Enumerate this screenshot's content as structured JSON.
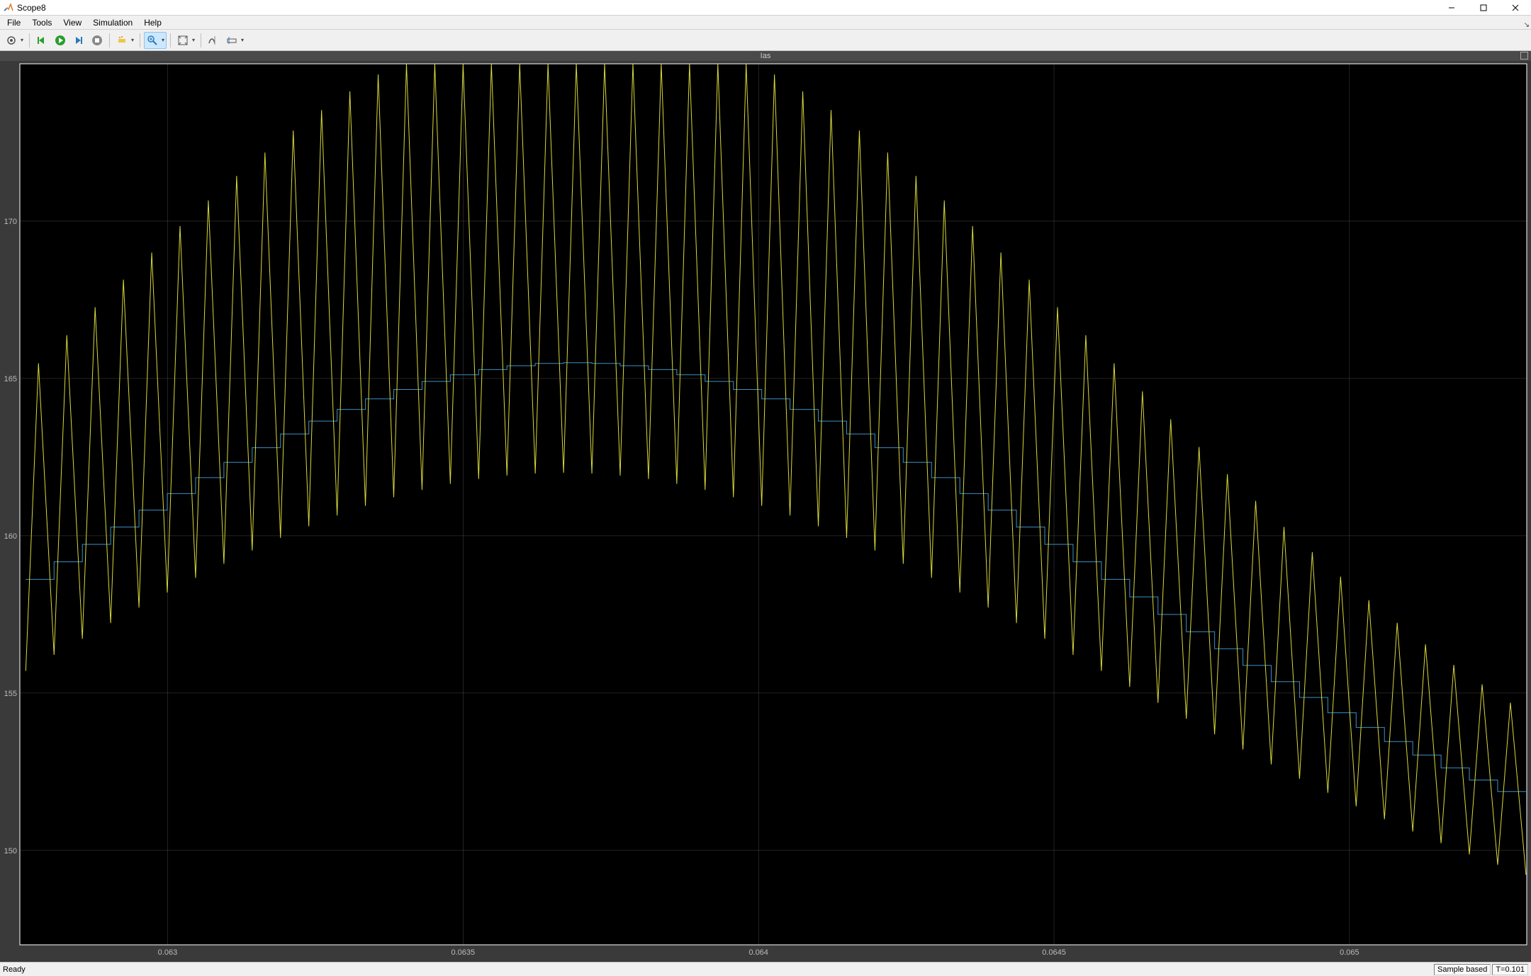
{
  "window": {
    "title": "Scope8"
  },
  "menu": {
    "items": [
      "File",
      "Tools",
      "View",
      "Simulation",
      "Help"
    ]
  },
  "toolbar": {
    "icons": [
      {
        "name": "config-gear-icon",
        "drop": true
      },
      {
        "name": "run-back-icon",
        "drop": false
      },
      {
        "name": "run-icon",
        "drop": false
      },
      {
        "name": "step-forward-icon",
        "drop": false
      },
      {
        "name": "stop-icon",
        "drop": false
      },
      {
        "name": "highlight-icon",
        "drop": true
      },
      {
        "name": "zoom-icon",
        "drop": true
      },
      {
        "name": "autoscale-icon",
        "drop": true
      },
      {
        "name": "cursor-measure-icon",
        "drop": false
      },
      {
        "name": "triggers-icon",
        "drop": true
      }
    ]
  },
  "scope": {
    "signal_title": "Ias",
    "background_color": "#000000",
    "grid_color": "#888888",
    "axis_text_color": "#bbbbbb",
    "series_yellow_color": "#d9d93a",
    "series_blue_color": "#3a8fc8",
    "plot_border_color": "#ffffff",
    "y_axis": {
      "min": 147,
      "max": 175,
      "grid_step": 5,
      "labels": [
        150,
        155,
        160,
        165,
        170
      ]
    },
    "x_axis": {
      "min": 0.06275,
      "max": 0.0653,
      "grid_major": [
        0.063,
        0.0635,
        0.064,
        0.0645,
        0.065
      ],
      "label_format": 4
    },
    "yellow_spikes": {
      "count": 53,
      "x_start": 0.06276,
      "x_step": 4.79e-05,
      "envelope_center_index": 19,
      "envelope_sigma": 19,
      "peak_base": 148.5,
      "peak_amp": 28,
      "peak_top_cap": 175,
      "trough_base": 146.0,
      "trough_amp": 16,
      "line_width": 1.0
    },
    "blue_stairs": {
      "count": 53,
      "x_start": 0.06276,
      "x_step": 4.79e-05,
      "envelope_center_index": 19,
      "envelope_sigma": 19,
      "base": 148.0,
      "amp": 17.5,
      "line_width": 1.0
    }
  },
  "status": {
    "left": "Ready",
    "right_mode": "Sample based",
    "right_time": "T=0.101"
  }
}
